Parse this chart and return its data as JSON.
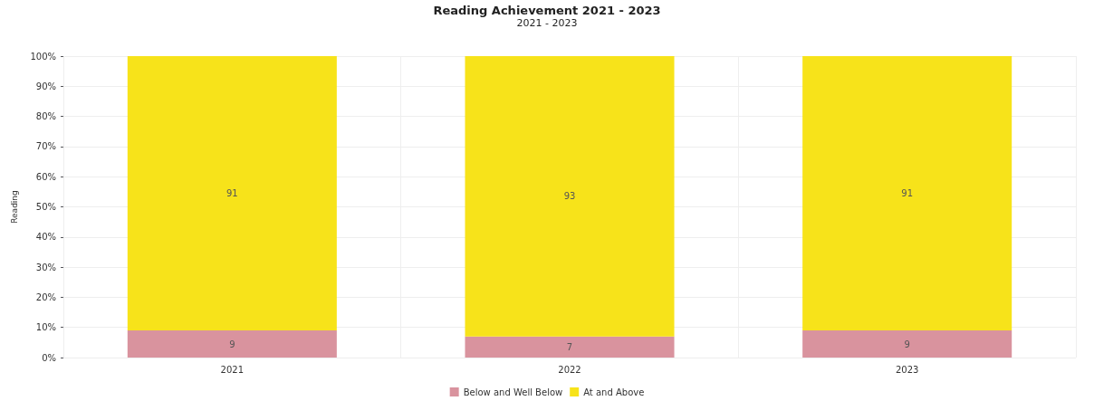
{
  "chart_data": {
    "type": "bar",
    "title": "Reading Achievement 2021 - 2023",
    "subtitle": "2021 - 2023",
    "ylabel": "Reading",
    "categories": [
      "2021",
      "2022",
      "2023"
    ],
    "series": [
      {
        "name": "Below and Well Below",
        "color": "#d9939e",
        "values": [
          9,
          7,
          9
        ]
      },
      {
        "name": "At and Above",
        "color": "#f7e31a",
        "values": [
          91,
          93,
          91
        ]
      }
    ],
    "stacked": true,
    "data_labels": true,
    "legend": "bottom",
    "grid": true,
    "ylim": [
      0,
      100
    ],
    "yticks": [
      {
        "value": 0,
        "label": "0%"
      },
      {
        "value": 10,
        "label": "10%"
      },
      {
        "value": 20,
        "label": "20%"
      },
      {
        "value": 30,
        "label": "30%"
      },
      {
        "value": 40,
        "label": "40%"
      },
      {
        "value": 50,
        "label": "50%"
      },
      {
        "value": 60,
        "label": "60%"
      },
      {
        "value": 70,
        "label": "70%"
      },
      {
        "value": 80,
        "label": "80%"
      },
      {
        "value": 90,
        "label": "90%"
      },
      {
        "value": 100,
        "label": "100%"
      }
    ]
  }
}
